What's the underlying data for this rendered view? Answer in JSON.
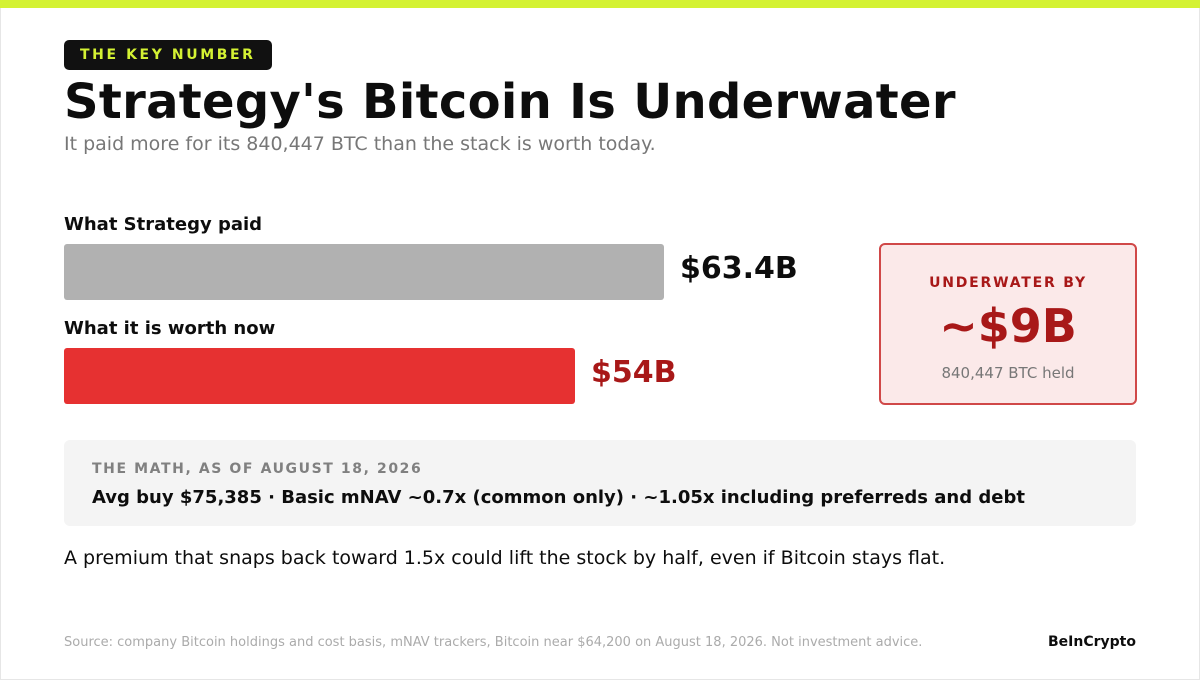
{
  "colors": {
    "accent": "#d4f233",
    "paid_bar": "#b1b1b1",
    "worth_bar": "#e63131",
    "worth_text": "#a81818",
    "callout_bg": "#fbe9e9",
    "callout_border": "#d04848"
  },
  "header": {
    "tag": "THE KEY NUMBER",
    "title": "Strategy's Bitcoin Is Underwater",
    "subtitle": "It paid more for its 840,447 BTC than the stack is worth today."
  },
  "chart_data": {
    "type": "bar",
    "orientation": "horizontal",
    "unit": "$B",
    "max": 63.4,
    "bars": [
      {
        "category": "What Strategy paid",
        "value": 63.4,
        "value_label": "$63.4B"
      },
      {
        "category": "What it is worth now",
        "value": 54,
        "value_label": "$54B"
      }
    ]
  },
  "callout": {
    "label": "UNDERWATER BY",
    "value": "~$9B",
    "sub": "840,447 BTC held"
  },
  "math": {
    "label": "THE MATH, AS OF AUGUST 18, 2026",
    "text": "Avg buy $75,385 · Basic mNAV ~0.7x (common only) · ~1.05x including preferreds and debt"
  },
  "takeaway": "A premium that snaps back toward 1.5x could lift the stock by half, even if Bitcoin stays flat.",
  "footer": {
    "source": "Source: company Bitcoin holdings and cost basis, mNAV trackers, Bitcoin near $64,200 on August 18, 2026. Not investment advice.",
    "brand": "BeInCrypto"
  }
}
